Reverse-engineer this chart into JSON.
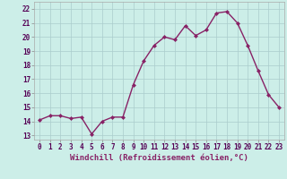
{
  "x": [
    0,
    1,
    2,
    3,
    4,
    5,
    6,
    7,
    8,
    9,
    10,
    11,
    12,
    13,
    14,
    15,
    16,
    17,
    18,
    19,
    20,
    21,
    22,
    23
  ],
  "y": [
    14.1,
    14.4,
    14.4,
    14.2,
    14.3,
    13.1,
    14.0,
    14.3,
    14.3,
    16.6,
    18.3,
    19.4,
    20.0,
    19.8,
    20.8,
    20.1,
    20.5,
    21.7,
    21.8,
    21.0,
    19.4,
    17.6,
    15.9,
    15.0
  ],
  "line_color": "#882266",
  "marker": "D",
  "marker_size": 2,
  "bg_color": "#cceee8",
  "grid_color": "#aacccc",
  "xlabel": "Windchill (Refroidissement éolien,°C)",
  "ylim": [
    12.7,
    22.5
  ],
  "yticks": [
    13,
    14,
    15,
    16,
    17,
    18,
    19,
    20,
    21,
    22
  ],
  "xticks": [
    0,
    1,
    2,
    3,
    4,
    5,
    6,
    7,
    8,
    9,
    10,
    11,
    12,
    13,
    14,
    15,
    16,
    17,
    18,
    19,
    20,
    21,
    22,
    23
  ],
  "tick_fontsize": 5.5,
  "xlabel_fontsize": 6.5,
  "line_width": 1.0
}
